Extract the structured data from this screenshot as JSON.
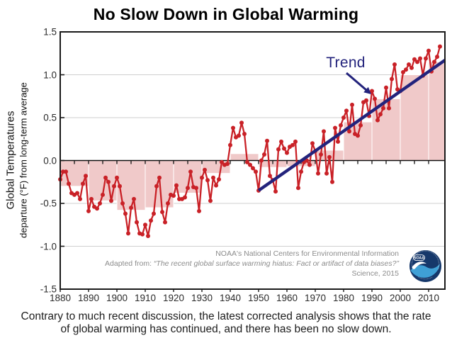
{
  "chart_data": {
    "type": "line",
    "title": "No Slow Down in Global Warming",
    "ylabel_line1": "Global Temperatures",
    "ylabel_line2": "departure (°F) from long-term average",
    "xlim": [
      1880,
      2015.75
    ],
    "ylim": [
      -1.5,
      1.5
    ],
    "x_ticks": [
      1880,
      1890,
      1900,
      1910,
      1920,
      1930,
      1940,
      1950,
      1960,
      1970,
      1980,
      1990,
      2000,
      2010
    ],
    "y_ticks": [
      "1.5",
      "1.0",
      "0.5",
      "0.0",
      "-0.5",
      "-1.0",
      "-1.5"
    ],
    "grid_values": [
      1.0,
      0.5,
      -0.5,
      -1.0
    ],
    "legend_position": "none",
    "series": [
      {
        "name": "Annual global temperature departure (°F)",
        "style": "line+marker",
        "start_year": 1880,
        "values": [
          -0.22,
          -0.13,
          -0.13,
          -0.27,
          -0.38,
          -0.4,
          -0.38,
          -0.45,
          -0.27,
          -0.18,
          -0.59,
          -0.45,
          -0.54,
          -0.56,
          -0.5,
          -0.4,
          -0.2,
          -0.25,
          -0.47,
          -0.3,
          -0.2,
          -0.3,
          -0.5,
          -0.62,
          -0.85,
          -0.55,
          -0.45,
          -0.72,
          -0.85,
          -0.86,
          -0.75,
          -0.88,
          -0.7,
          -0.62,
          -0.3,
          -0.2,
          -0.6,
          -0.72,
          -0.5,
          -0.4,
          -0.41,
          -0.29,
          -0.45,
          -0.45,
          -0.43,
          -0.32,
          -0.13,
          -0.31,
          -0.32,
          -0.59,
          -0.2,
          -0.11,
          -0.23,
          -0.47,
          -0.2,
          -0.29,
          -0.22,
          -0.02,
          -0.05,
          -0.04,
          0.18,
          0.38,
          0.27,
          0.29,
          0.44,
          0.31,
          -0.02,
          -0.05,
          -0.09,
          -0.13,
          -0.35,
          0.0,
          0.07,
          0.23,
          -0.18,
          -0.23,
          -0.36,
          0.13,
          0.22,
          0.14,
          0.09,
          0.16,
          0.18,
          0.22,
          -0.32,
          -0.13,
          -0.02,
          0.0,
          -0.05,
          0.2,
          0.11,
          -0.15,
          0.07,
          0.34,
          -0.15,
          0.04,
          -0.25,
          0.38,
          0.22,
          0.41,
          0.5,
          0.58,
          0.34,
          0.65,
          0.31,
          0.29,
          0.41,
          0.68,
          0.7,
          0.52,
          0.81,
          0.72,
          0.47,
          0.54,
          0.61,
          0.85,
          0.61,
          0.95,
          1.12,
          0.83,
          0.81,
          1.03,
          1.06,
          1.12,
          1.08,
          1.18,
          1.15,
          1.19,
          0.99,
          1.19,
          1.28,
          1.04,
          1.15,
          1.21,
          1.33
        ]
      }
    ],
    "decadal_bars": [
      {
        "start": 1880,
        "end": 1890,
        "value": -0.3
      },
      {
        "start": 1890,
        "end": 1900,
        "value": -0.47
      },
      {
        "start": 1900,
        "end": 1910,
        "value": -0.58
      },
      {
        "start": 1910,
        "end": 1920,
        "value": -0.55
      },
      {
        "start": 1920,
        "end": 1930,
        "value": -0.38
      },
      {
        "start": 1930,
        "end": 1940,
        "value": -0.15
      },
      {
        "start": 1940,
        "end": 1950,
        "value": 0.08
      },
      {
        "start": 1950,
        "end": 1960,
        "value": -0.08
      },
      {
        "start": 1960,
        "end": 1970,
        "value": -0.07
      },
      {
        "start": 1970,
        "end": 1980,
        "value": 0.12
      },
      {
        "start": 1980,
        "end": 1990,
        "value": 0.45
      },
      {
        "start": 1990,
        "end": 2000,
        "value": 0.72
      },
      {
        "start": 2000,
        "end": 2010,
        "value": 1.0
      },
      {
        "start": 2010,
        "end": 2015.75,
        "value": 1.15
      }
    ],
    "trend": {
      "label": "Trend",
      "start_year": 1950,
      "start_value": -0.35,
      "end_year": 2015.75,
      "end_value": 1.17
    },
    "colors": {
      "annual_line": "#c92127",
      "decadal_fill": "#f0c9c9",
      "trend_line": "#23237c",
      "gridline": "#cfcfcf",
      "frame": "#1a1a1a",
      "zero_axis": "#111111"
    }
  },
  "attribution": {
    "line1": "NOAA's National Centers for Environmental Information",
    "line2_prefix": "Adapted from: ",
    "line2_quote": "“The recent global surface warming hiatus: Fact or artifact of data biases?”",
    "line3": "Science, 2015"
  },
  "logo": {
    "text": "NOAA"
  },
  "caption": {
    "line1": "Contrary to much recent discussion, the latest corrected analysis shows that the rate",
    "line2": "of global warming has continued, and there has been no slow down."
  }
}
